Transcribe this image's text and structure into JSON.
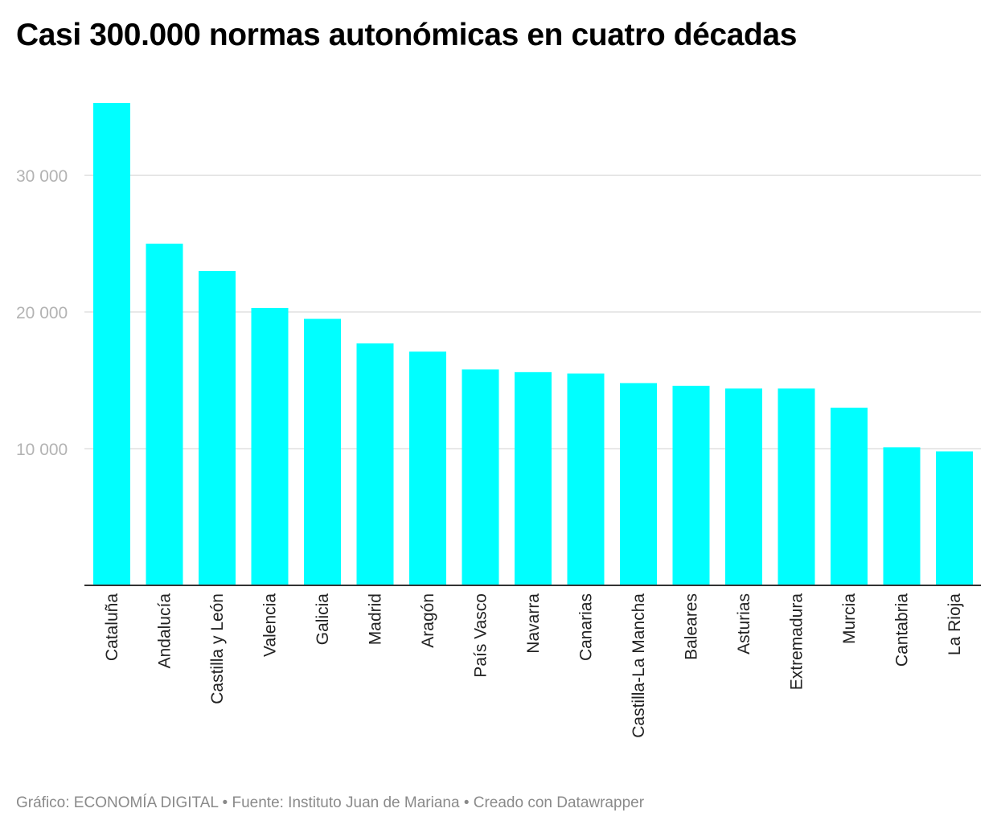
{
  "title": "Casi 300.000 normas autonómicas en cuatro décadas",
  "footer": "Gráfico: ECONOMÍA DIGITAL • Fuente: Instituto Juan de Mariana • Creado con Datawrapper",
  "colors": {
    "bar": "#00ffff",
    "grid": "#e0e0e0",
    "axis": "#333333"
  },
  "chart_data": {
    "type": "bar",
    "categories": [
      "Cataluña",
      "Andalucía",
      "Castilla y León",
      "Valencia",
      "Galicia",
      "Madrid",
      "Aragón",
      "País Vasco",
      "Navarra",
      "Canarias",
      "Castilla-La Mancha",
      "Baleares",
      "Asturias",
      "Extremadura",
      "Murcia",
      "Cantabria",
      "La Rioja"
    ],
    "values": [
      35300,
      25000,
      23000,
      20300,
      19500,
      17700,
      17100,
      15800,
      15600,
      15500,
      14800,
      14600,
      14400,
      14400,
      13000,
      10100,
      9800
    ],
    "yticks": [
      10000,
      20000,
      30000
    ],
    "ytick_labels": [
      "10 000",
      "20 000",
      "30 000"
    ],
    "ylim": [
      0,
      35300
    ],
    "grid": true,
    "legend": "none"
  }
}
